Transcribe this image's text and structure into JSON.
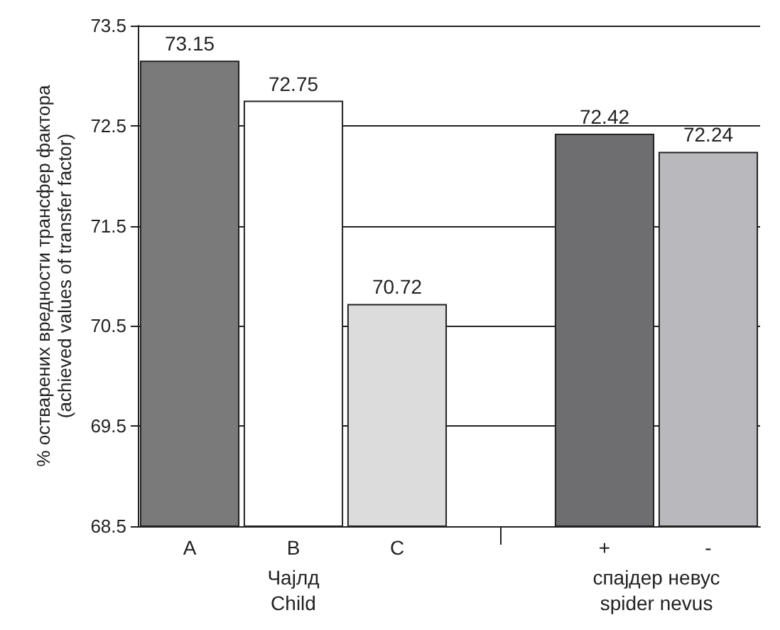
{
  "chart_data": {
    "type": "bar",
    "ylabel": "% остварених вредности трансфер фактора\n(achieved values of transfer factor)",
    "categories": [
      "A",
      "B",
      "C",
      null,
      "+",
      "-"
    ],
    "values": [
      73.15,
      72.75,
      70.72,
      null,
      72.42,
      72.24
    ],
    "colors": [
      "#7a7a7a",
      "#ffffff",
      "#dcdcdc",
      "#ffffff",
      "#6e6e70",
      "#b9b9bd"
    ],
    "ylim": [
      68.5,
      73.5
    ],
    "yticks": [
      68.5,
      69.5,
      70.5,
      71.5,
      72.5,
      73.5
    ],
    "grid": "y",
    "data_labels": true,
    "annotations": [
      "Чајлд\nChild",
      "спајдер невус\nspider nevus"
    ]
  }
}
